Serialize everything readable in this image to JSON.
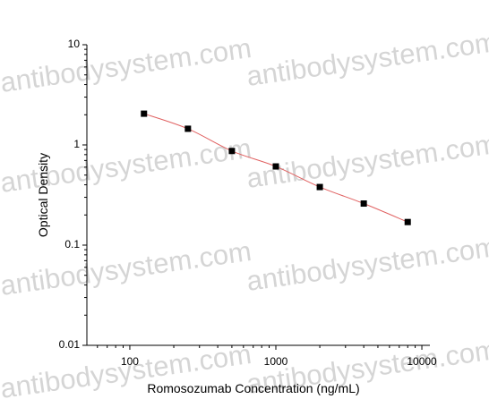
{
  "watermark": "antibodysystem.com",
  "chart_data": {
    "type": "scatter",
    "x_label": "Romosozumab Concentration (ng/mL)",
    "y_label": "Optical Density",
    "x_log": true,
    "y_log": true,
    "xlim": [
      50.8,
      11350
    ],
    "ylim": [
      0.01,
      10
    ],
    "xticks": [
      100,
      1000,
      10000
    ],
    "yticks": [
      0.01,
      0.1,
      1,
      10
    ],
    "xminorticks": [
      60,
      70,
      80,
      90,
      200,
      300,
      400,
      500,
      600,
      700,
      800,
      900,
      2000,
      3000,
      4000,
      5000,
      6000,
      7000,
      8000,
      9000
    ],
    "yminorticks": [
      0.02,
      0.03,
      0.04,
      0.05,
      0.06,
      0.07,
      0.08,
      0.09,
      0.2,
      0.3,
      0.4,
      0.5,
      0.6,
      0.7,
      0.8,
      0.9,
      2,
      3,
      4,
      5,
      6,
      7,
      8,
      9
    ],
    "fit_color": "#e06060",
    "series": [
      {
        "color": "#000000",
        "x": [
          125,
          250,
          500,
          1000,
          2000,
          4000,
          8000
        ],
        "values": [
          2.05,
          1.45,
          0.87,
          0.61,
          0.38,
          0.26,
          0.17
        ]
      }
    ]
  }
}
